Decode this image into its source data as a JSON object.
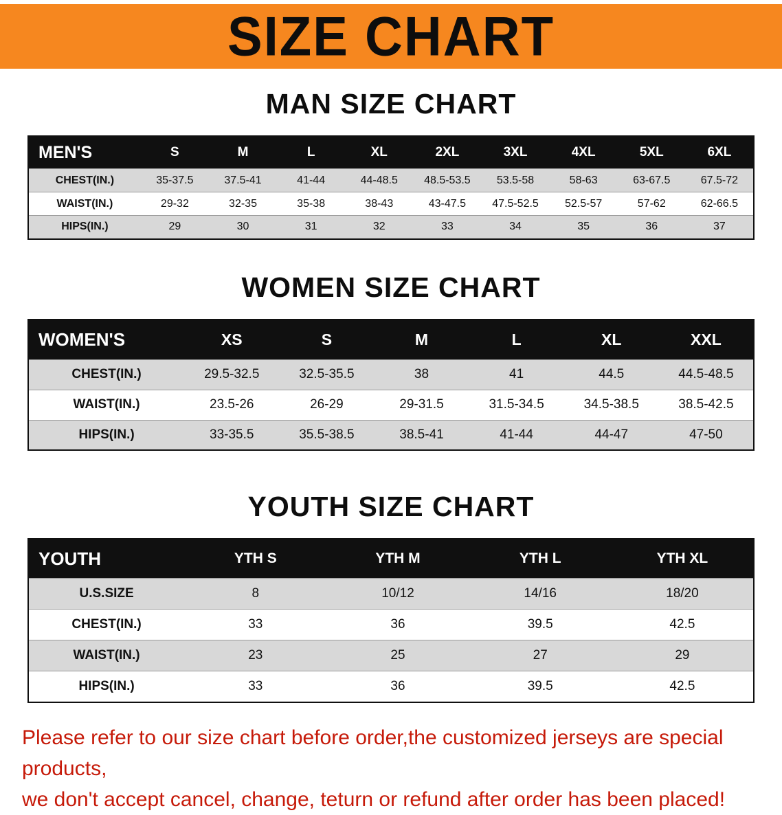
{
  "banner": {
    "title": "SIZE CHART"
  },
  "colors": {
    "banner_bg": "#F6871F",
    "table_header_bg": "#101010",
    "table_header_text": "#FFFFFF",
    "row_alt_bg": "#D8D8D8",
    "disclaimer_red": "#C61A09"
  },
  "sections": [
    {
      "heading": "MAN SIZE CHART",
      "table": {
        "header": [
          "MEN'S",
          "S",
          "M",
          "L",
          "XL",
          "2XL",
          "3XL",
          "4XL",
          "5XL",
          "6XL"
        ],
        "rows": [
          [
            "CHEST(IN.)",
            "35-37.5",
            "37.5-41",
            "41-44",
            "44-48.5",
            "48.5-53.5",
            "53.5-58",
            "58-63",
            "63-67.5",
            "67.5-72"
          ],
          [
            "WAIST(IN.)",
            "29-32",
            "32-35",
            "35-38",
            "38-43",
            "43-47.5",
            "47.5-52.5",
            "52.5-57",
            "57-62",
            "62-66.5"
          ],
          [
            "HIPS(IN.)",
            "29",
            "30",
            "31",
            "32",
            "33",
            "34",
            "35",
            "36",
            "37"
          ]
        ]
      }
    },
    {
      "heading": "WOMEN SIZE CHART",
      "table": {
        "header": [
          "WOMEN'S",
          "XS",
          "S",
          "M",
          "L",
          "XL",
          "XXL"
        ],
        "rows": [
          [
            "CHEST(IN.)",
            "29.5-32.5",
            "32.5-35.5",
            "38",
            "41",
            "44.5",
            "44.5-48.5"
          ],
          [
            "WAIST(IN.)",
            "23.5-26",
            "26-29",
            "29-31.5",
            "31.5-34.5",
            "34.5-38.5",
            "38.5-42.5"
          ],
          [
            "HIPS(IN.)",
            "33-35.5",
            "35.5-38.5",
            "38.5-41",
            "41-44",
            "44-47",
            "47-50"
          ]
        ]
      }
    },
    {
      "heading": "YOUTH SIZE CHART",
      "table": {
        "header": [
          "YOUTH",
          "YTH S",
          "YTH M",
          "YTH L",
          "YTH XL"
        ],
        "rows": [
          [
            "U.S.SIZE",
            "8",
            "10/12",
            "14/16",
            "18/20"
          ],
          [
            "CHEST(IN.)",
            "33",
            "36",
            "39.5",
            "42.5"
          ],
          [
            "WAIST(IN.)",
            "23",
            "25",
            "27",
            "29"
          ],
          [
            "HIPS(IN.)",
            "33",
            "36",
            "39.5",
            "42.5"
          ]
        ]
      }
    }
  ],
  "disclaimer": {
    "line1": "Please refer to our size chart before order,the customized jerseys are special products,",
    "line2": "we don't accept cancel, change, teturn or refund after order has been placed!"
  }
}
